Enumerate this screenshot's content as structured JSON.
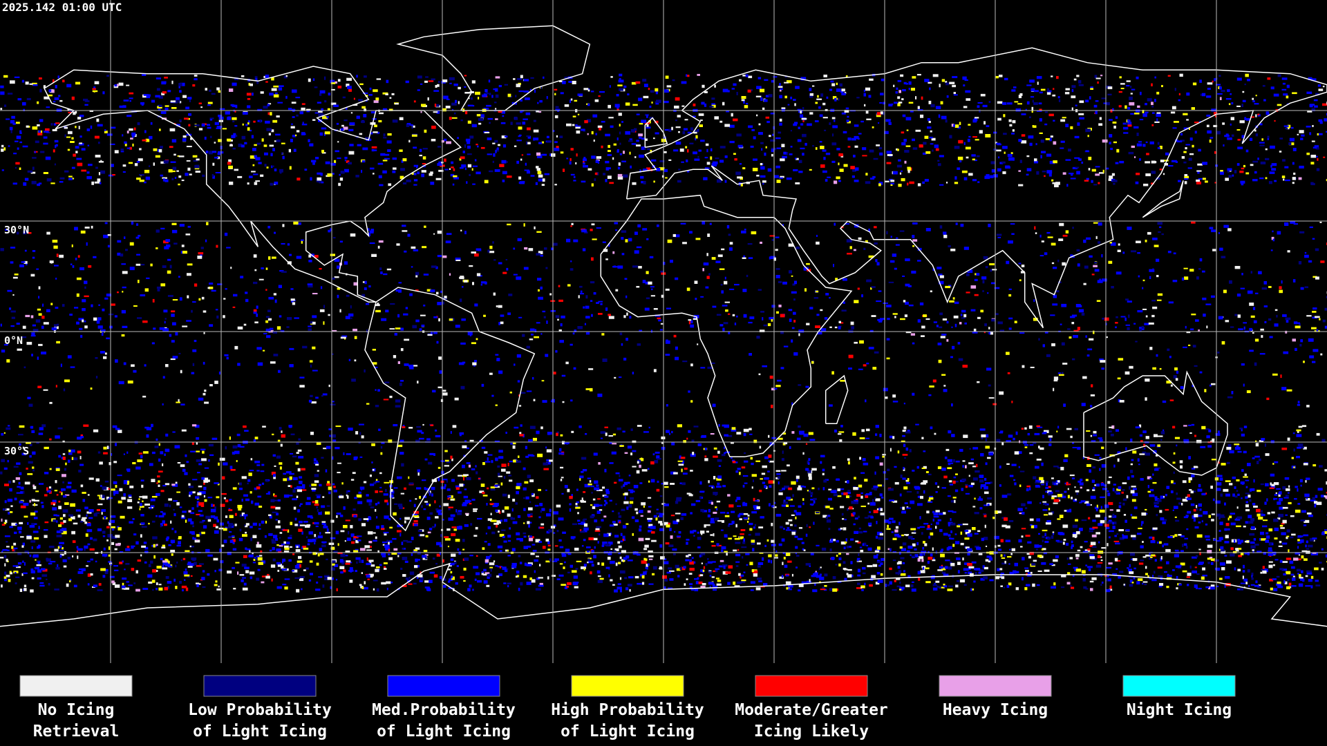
{
  "timestamp": "2025.142 01:00 UTC",
  "latitude_labels": [
    "30°N",
    "0°N",
    "30°S"
  ],
  "legend": [
    {
      "color": "#f0f0f0",
      "label": [
        "No Icing",
        "Retrieval"
      ]
    },
    {
      "color": "#000080",
      "label": [
        "Low Probability",
        "of Light Icing"
      ]
    },
    {
      "color": "#0000ff",
      "label": [
        "Med.Probability",
        "of Light Icing"
      ]
    },
    {
      "color": "#ffff00",
      "label": [
        "High Probability",
        "of Light Icing"
      ]
    },
    {
      "color": "#ff0000",
      "label": [
        "Moderate/Greater",
        "Icing Likely"
      ]
    },
    {
      "color": "#e8a0e8",
      "label": [
        "Heavy Icing"
      ]
    },
    {
      "color": "#00ffff",
      "label": [
        "Night Icing"
      ]
    }
  ]
}
